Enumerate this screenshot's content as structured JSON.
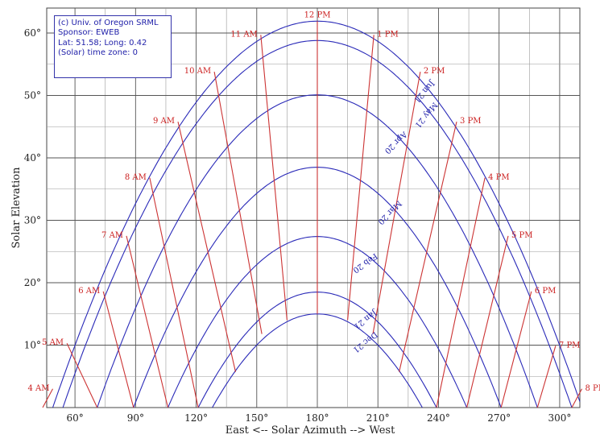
{
  "chart_data": {
    "type": "line",
    "xlabel": "East <-- Solar Azimuth --> West",
    "ylabel": "Solar Elevation",
    "xlim": [
      46,
      310
    ],
    "ylim": [
      0,
      64
    ],
    "xticks": [
      "60°",
      "90°",
      "120°",
      "150°",
      "180°",
      "210°",
      "240°",
      "270°",
      "300°"
    ],
    "yticks": [
      "10°",
      "20°",
      "30°",
      "40°",
      "50°",
      "60°"
    ],
    "grid": true,
    "info_box": {
      "line1": "(c) Univ. of Oregon SRML",
      "line2": "Sponsor: EWEB",
      "line3": "Lat: 51.58; Long: 0.42",
      "line4": "(Solar) time zone: 0"
    },
    "date_series": [
      {
        "name": "Jun 21",
        "max_elevation": 61.9,
        "start_azimuth": 49
      },
      {
        "name": "May 21",
        "max_elevation": 58.8,
        "start_azimuth": 54
      },
      {
        "name": "Apr 20",
        "max_elevation": 50.1,
        "start_azimuth": 71
      },
      {
        "name": "Mar 20",
        "max_elevation": 38.5,
        "start_azimuth": 89
      },
      {
        "name": "Feb 20",
        "max_elevation": 27.4,
        "start_azimuth": 106
      },
      {
        "name": "Jan 21",
        "max_elevation": 18.5,
        "start_azimuth": 121
      },
      {
        "name": "Dec 21",
        "max_elevation": 15.0,
        "start_azimuth": 128
      }
    ],
    "hour_series": [
      {
        "name": "4 AM",
        "points": [
          [
            44,
            0
          ],
          [
            49,
            3
          ]
        ]
      },
      {
        "name": "5 AM",
        "points": [
          [
            56,
            10.3
          ],
          [
            71,
            0
          ]
        ]
      },
      {
        "name": "6 AM",
        "points": [
          [
            74,
            18.6
          ],
          [
            89,
            0
          ]
        ]
      },
      {
        "name": "7 AM",
        "points": [
          [
            85.5,
            27.5
          ],
          [
            106,
            0
          ]
        ]
      },
      {
        "name": "8 AM",
        "points": [
          [
            97,
            36.8
          ],
          [
            121,
            0
          ]
        ]
      },
      {
        "name": "9 AM",
        "points": [
          [
            111,
            45.8
          ],
          [
            139.5,
            5.7
          ]
        ]
      },
      {
        "name": "10 AM",
        "points": [
          [
            129,
            53.8
          ],
          [
            152.5,
            11.8
          ]
        ]
      },
      {
        "name": "11 AM",
        "points": [
          [
            152,
            59.7
          ],
          [
            165,
            14
          ]
        ]
      },
      {
        "name": "12 PM",
        "points": [
          [
            180,
            61.9
          ],
          [
            180,
            15
          ]
        ]
      },
      {
        "name": "1 PM",
        "points": [
          [
            208,
            59.7
          ],
          [
            195,
            14
          ]
        ]
      },
      {
        "name": "2 PM",
        "points": [
          [
            231,
            53.8
          ],
          [
            207.5,
            11.8
          ]
        ]
      },
      {
        "name": "3 PM",
        "points": [
          [
            249,
            45.8
          ],
          [
            220.5,
            5.7
          ]
        ]
      },
      {
        "name": "4 PM",
        "points": [
          [
            263,
            36.8
          ],
          [
            239,
            0
          ]
        ]
      },
      {
        "name": "5 PM",
        "points": [
          [
            274.5,
            27.5
          ],
          [
            254,
            0
          ]
        ]
      },
      {
        "name": "6 PM",
        "points": [
          [
            286,
            18.6
          ],
          [
            271,
            0
          ]
        ]
      },
      {
        "name": "7 PM",
        "points": [
          [
            298,
            9.9
          ],
          [
            289,
            0
          ]
        ]
      },
      {
        "name": "8 PM",
        "points": [
          [
            311,
            3
          ],
          [
            306,
            0
          ]
        ]
      }
    ]
  }
}
